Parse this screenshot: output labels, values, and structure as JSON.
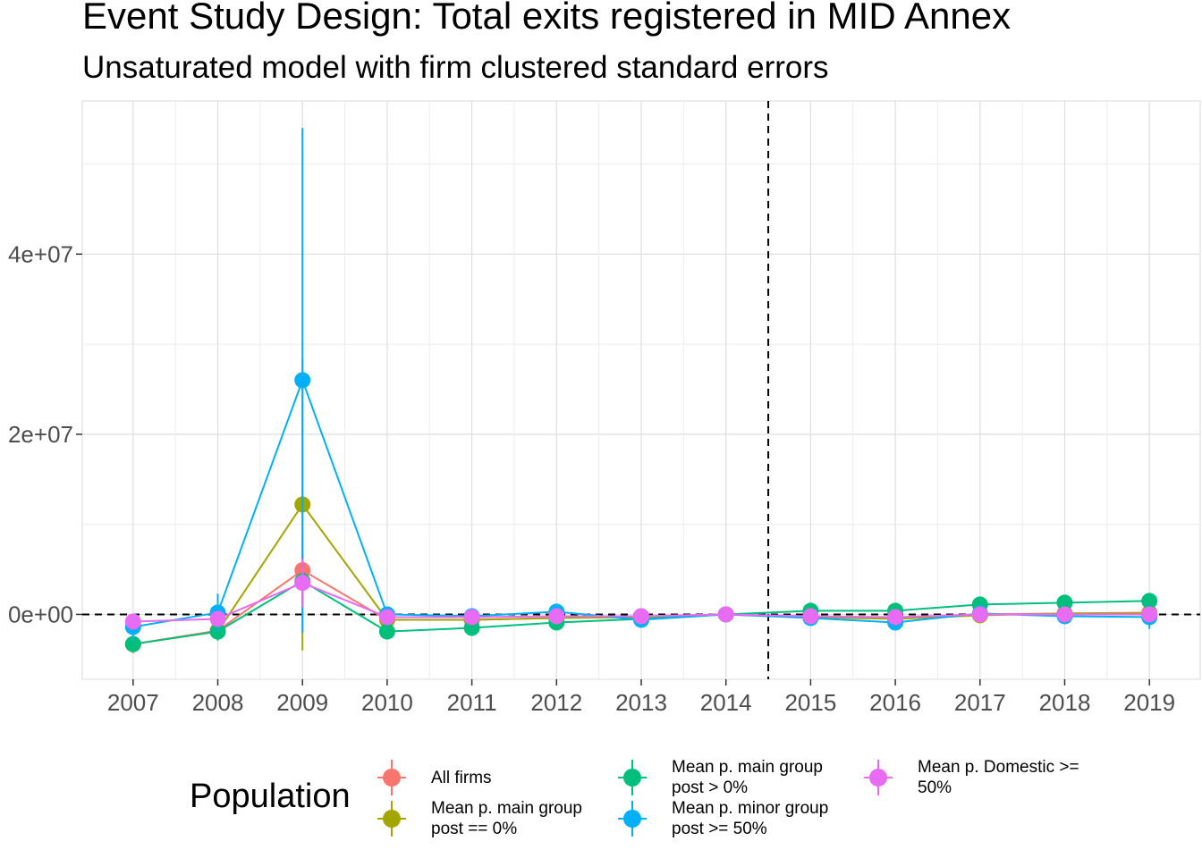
{
  "chart_data": {
    "type": "line",
    "title": "Event Study Design: Total exits registered in MID Annex",
    "subtitle": "Unsaturated model with firm clustered standard errors",
    "xlabel": "",
    "ylabel": "",
    "x": [
      2007,
      2008,
      2009,
      2010,
      2011,
      2012,
      2013,
      2014,
      2015,
      2016,
      2017,
      2018,
      2019
    ],
    "x_tick_labels": [
      "2007",
      "2008",
      "2009",
      "2010",
      "2011",
      "2012",
      "2013",
      "2014",
      "2015",
      "2016",
      "2017",
      "2018",
      "2019"
    ],
    "y_tick_labels": [
      "0e+00",
      "2e+07",
      "4e+07"
    ],
    "y_ticks": [
      0,
      20000000,
      40000000
    ],
    "ylim": [
      -7200000,
      57000000
    ],
    "xlim": [
      2006.4,
      2019.6
    ],
    "reference_lines": {
      "hline_y": 0,
      "vline_x": 2014.5
    },
    "grid": true,
    "legend": {
      "title": "Population",
      "position": "bottom"
    },
    "series": [
      {
        "name": "All firms",
        "color": "#F8766D",
        "values": [
          -3300000,
          -1800000,
          4900000,
          -600000,
          -600000,
          -400000,
          -200000,
          0,
          -300000,
          -400000,
          0,
          100000,
          200000
        ],
        "ci_low": [
          -4200000,
          -2800000,
          1000000,
          -1300000,
          -1100000,
          -900000,
          -700000,
          0,
          -800000,
          -1000000,
          -300000,
          -300000,
          -500000
        ],
        "ci_high": [
          -2400000,
          -800000,
          8800000,
          100000,
          -100000,
          100000,
          300000,
          0,
          200000,
          200000,
          300000,
          500000,
          900000
        ]
      },
      {
        "name": "Mean p. main group\npost == 0%",
        "color": "#A3A500",
        "values": [
          -3300000,
          -1900000,
          12200000,
          -600000,
          -600000,
          -400000,
          -300000,
          0,
          -300000,
          -500000,
          -100000,
          100000,
          100000
        ],
        "ci_low": [
          -4300000,
          -2900000,
          -4000000,
          -1300000,
          -1100000,
          -900000,
          -800000,
          0,
          -800000,
          -1100000,
          -400000,
          -300000,
          -600000
        ],
        "ci_high": [
          -2300000,
          -900000,
          28400000,
          100000,
          -100000,
          100000,
          200000,
          0,
          200000,
          100000,
          200000,
          500000,
          800000
        ]
      },
      {
        "name": "Mean p. main group\npost > 0%",
        "color": "#00BF7D",
        "values": [
          -3300000,
          -1900000,
          3700000,
          -1900000,
          -1500000,
          -900000,
          -500000,
          0,
          400000,
          400000,
          1100000,
          1300000,
          1500000
        ],
        "ci_low": [
          -4200000,
          -2900000,
          800000,
          -2600000,
          -2100000,
          -1400000,
          -1000000,
          0,
          -100000,
          -200000,
          600000,
          800000,
          900000
        ],
        "ci_high": [
          -2400000,
          -900000,
          6600000,
          -1200000,
          -900000,
          -400000,
          0,
          0,
          900000,
          1000000,
          1600000,
          1800000,
          2100000
        ]
      },
      {
        "name": "Mean p. minor group\npost >= 50%",
        "color": "#00B0F6",
        "values": [
          -1400000,
          200000,
          26000000,
          0,
          -200000,
          300000,
          -600000,
          0,
          -400000,
          -900000,
          100000,
          -200000,
          -300000
        ],
        "ci_low": [
          -2900000,
          -1900000,
          -2000000,
          -700000,
          -700000,
          -200000,
          -1100000,
          0,
          -900000,
          -1500000,
          -300000,
          -1000000,
          -1600000
        ],
        "ci_high": [
          100000,
          2300000,
          54000000,
          700000,
          300000,
          800000,
          -100000,
          0,
          100000,
          -300000,
          500000,
          600000,
          1000000
        ]
      },
      {
        "name": "Mean p. Domestic >=\n50%",
        "color": "#E76BF3",
        "values": [
          -800000,
          -500000,
          3500000,
          -300000,
          -300000,
          -200000,
          -200000,
          0,
          -200000,
          -300000,
          0,
          0,
          0
        ],
        "ci_low": [
          -1500000,
          -1200000,
          800000,
          -800000,
          -700000,
          -600000,
          -600000,
          0,
          -600000,
          -800000,
          -300000,
          -400000,
          -400000
        ],
        "ci_high": [
          -100000,
          200000,
          6200000,
          200000,
          100000,
          200000,
          200000,
          0,
          200000,
          200000,
          300000,
          400000,
          400000
        ]
      }
    ]
  }
}
